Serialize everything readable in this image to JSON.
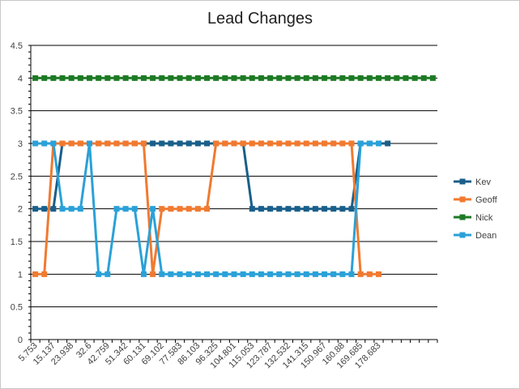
{
  "chart_data": {
    "type": "line",
    "title": "Lead Changes",
    "xlabel": "",
    "ylabel": "",
    "ylim": [
      0,
      4.5
    ],
    "yticks": [
      "0",
      "0.5",
      "1",
      "1.5",
      "2",
      "2.5",
      "3",
      "3.5",
      "4",
      "4.5"
    ],
    "grid": true,
    "legend_position": "right",
    "x_tick_labels": [
      "5.753",
      "15.137",
      "23.938",
      "32.6",
      "42.759",
      "51.342",
      "60.131",
      "69.102",
      "77.583",
      "86.103",
      "96.325",
      "104.801",
      "115.053",
      "123.787",
      "132.532",
      "141.315",
      "150.967",
      "160.88",
      "169.685",
      "178.683"
    ],
    "categories_count": 45,
    "series": [
      {
        "name": "Kev",
        "color": "#1a5f8a",
        "values": [
          2,
          2,
          2,
          3,
          3,
          3,
          3,
          3,
          3,
          3,
          3,
          3,
          3,
          3,
          3,
          3,
          3,
          3,
          3,
          3,
          3,
          3,
          3,
          3,
          2,
          2,
          2,
          2,
          2,
          2,
          2,
          2,
          2,
          2,
          2,
          2,
          3,
          3,
          3,
          3
        ]
      },
      {
        "name": "Geoff",
        "color": "#f07a30",
        "values": [
          1,
          1,
          3,
          3,
          3,
          3,
          3,
          3,
          3,
          3,
          3,
          3,
          3,
          1,
          2,
          2,
          2,
          2,
          2,
          2,
          3,
          3,
          3,
          3,
          3,
          3,
          3,
          3,
          3,
          3,
          3,
          3,
          3,
          3,
          3,
          3,
          1,
          1,
          1
        ]
      },
      {
        "name": "Nick",
        "color": "#1e7a24",
        "values": [
          4,
          4,
          4,
          4,
          4,
          4,
          4,
          4,
          4,
          4,
          4,
          4,
          4,
          4,
          4,
          4,
          4,
          4,
          4,
          4,
          4,
          4,
          4,
          4,
          4,
          4,
          4,
          4,
          4,
          4,
          4,
          4,
          4,
          4,
          4,
          4,
          4,
          4,
          4,
          4,
          4,
          4,
          4,
          4,
          4
        ]
      },
      {
        "name": "Dean",
        "color": "#2aa1d8",
        "values": [
          3,
          3,
          3,
          2,
          2,
          2,
          3,
          1,
          1,
          2,
          2,
          2,
          1,
          2,
          1,
          1,
          1,
          1,
          1,
          1,
          1,
          1,
          1,
          1,
          1,
          1,
          1,
          1,
          1,
          1,
          1,
          1,
          1,
          1,
          1,
          1,
          3,
          3,
          3
        ]
      }
    ]
  }
}
